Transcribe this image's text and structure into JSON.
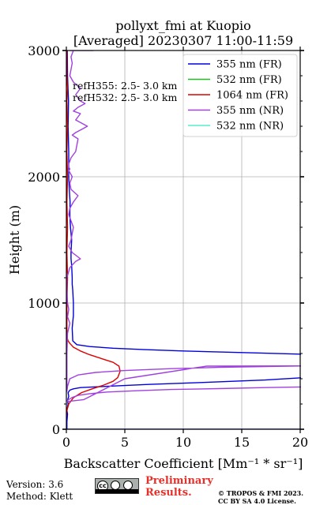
{
  "title_line1": "pollyxt_fmi at Kuopio",
  "title_line2": "[Averaged] 20230307 11:00-11:59",
  "footer": {
    "version": "Version: 3.6",
    "method": "Method: Klett",
    "prelim_line1": "Preliminary",
    "prelim_line2": "Results.",
    "copyright_line1": "© TROPOS & FMI 2023.",
    "copyright_line2": "CC BY SA 4.0 License.",
    "license_icon": "cc-by-sa-badge"
  },
  "chart_data": {
    "type": "line",
    "xlabel": "Backscatter Coefficient [Mm⁻¹ * sr⁻¹]",
    "ylabel": "Height (m)",
    "xlim": [
      0,
      20
    ],
    "ylim": [
      0,
      3000
    ],
    "xticks": [
      0,
      5,
      10,
      15,
      20
    ],
    "yticks": [
      0,
      1000,
      2000,
      3000
    ],
    "grid": true,
    "legend_position": "top-right",
    "annotations": [
      "refH355:  2.5- 3.0 km",
      "refH532:  2.5- 3.0 km"
    ],
    "series": [
      {
        "name": "355 nm (FR)",
        "color": "#0000dd",
        "x": [
          20.5,
          20.0,
          17.0,
          12.0,
          7.0,
          3.8,
          1.8,
          0.6,
          0.05,
          0.05,
          0.1,
          0.05,
          0.15,
          0.1,
          0.2,
          0.15,
          0.3,
          0.6,
          1.2,
          3.5,
          7.0,
          11.5,
          17.0,
          20.5,
          20.5,
          20.0,
          16.0,
          10.0,
          6.5,
          4.0,
          2.0,
          0.9,
          0.55,
          0.5,
          0.55,
          0.6,
          0.6,
          0.55,
          0.5,
          0.5,
          0.45,
          0.4,
          0.4,
          0.45,
          0.35,
          0.3,
          0.32,
          0.25,
          0.2,
          0.2,
          0.15,
          0.18,
          0.1,
          0.08
        ],
        "y": [
          0,
          0,
          0,
          0,
          0,
          0,
          0,
          0,
          0,
          60,
          120,
          150,
          200,
          230,
          260,
          290,
          310,
          320,
          330,
          340,
          355,
          370,
          390,
          410,
          590,
          595,
          605,
          620,
          632,
          642,
          655,
          670,
          700,
          800,
          850,
          900,
          1000,
          1100,
          1150,
          1200,
          1300,
          1350,
          1400,
          1500,
          1600,
          1700,
          1800,
          1900,
          2000,
          2200,
          2400,
          2600,
          2800,
          3000
        ]
      },
      {
        "name": "532 nm (FR)",
        "color": "#22bb22",
        "x": [],
        "y": []
      },
      {
        "name": "1064 nm (FR)",
        "color": "#dd0000",
        "x": [
          0.0,
          0.05,
          0.2,
          0.6,
          1.3,
          2.2,
          3.2,
          4.0,
          4.4,
          4.6,
          4.5,
          4.0,
          3.0,
          2.0,
          1.2,
          0.6,
          0.3,
          0.15,
          0.05,
          0.05,
          0.05,
          0.1,
          0.05,
          0.1,
          0.05,
          0.1,
          0.05,
          0.1,
          0.05,
          0.1,
          0.05,
          0.05
        ],
        "y": [
          100,
          150,
          200,
          250,
          290,
          320,
          350,
          380,
          410,
          460,
          500,
          530,
          560,
          590,
          620,
          650,
          680,
          700,
          730,
          800,
          1000,
          1200,
          1400,
          1600,
          1800,
          2000,
          2200,
          2400,
          2600,
          2700,
          2800,
          3000
        ]
      },
      {
        "name": "355 nm (NR)",
        "color": "#a040e0",
        "x": [
          20.5,
          20.0,
          17.0,
          13.0,
          9.0,
          6.0,
          3.5,
          2.0,
          1.0,
          0.5,
          0.1,
          0.1,
          1.5,
          5.0,
          12.0,
          20.5,
          20.5,
          18.0,
          13.0,
          9.0,
          5.0,
          2.5,
          1.0,
          0.3,
          0.1,
          0.05,
          0.05,
          0.1,
          0.3,
          0.1,
          0.2,
          0.1,
          0.05,
          0.05,
          0.3,
          0.8,
          1.2,
          0.5,
          0.2,
          0.4,
          0.6,
          0.2,
          0.3,
          0.6,
          1.0,
          0.4,
          0.3,
          0.5,
          0.2,
          0.3,
          0.2,
          0.2,
          0.4,
          0.8,
          1.0,
          0.5,
          0.8,
          1.4,
          1.8,
          0.8,
          1.2,
          0.6,
          1.0,
          1.6,
          1.2,
          0.8,
          1.2,
          0.6,
          0.3,
          0.5,
          0.4,
          0.6,
          0.4,
          0.3,
          0.8,
          1.8,
          0.5,
          1.1,
          0.6,
          1.0,
          0.8,
          1.4,
          0.9,
          1.6,
          1.3,
          2.3,
          1.0,
          0.5,
          0.8
        ],
        "y": [
          335,
          335,
          330,
          322,
          315,
          305,
          295,
          282,
          268,
          252,
          230,
          220,
          235,
          400,
          500,
          502,
          502,
          498,
          490,
          480,
          465,
          450,
          430,
          400,
          340,
          300,
          600,
          760,
          840,
          890,
          950,
          1000,
          1100,
          1200,
          1280,
          1330,
          1350,
          1400,
          1450,
          1500,
          1600,
          1700,
          1750,
          1800,
          1850,
          1900,
          1950,
          2000,
          2050,
          2060,
          2080,
          2100,
          2150,
          2200,
          2300,
          2330,
          2350,
          2380,
          2400,
          2450,
          2500,
          2520,
          2550,
          2580,
          2600,
          2650,
          2700,
          2750,
          2800,
          2900,
          2950,
          3000,
          3000,
          3000,
          3000,
          3000,
          3000,
          3000,
          3000,
          3000,
          3000,
          3000,
          3000,
          3000,
          3000,
          3000,
          3000,
          3000,
          3000
        ]
      },
      {
        "name": "532 nm (NR)",
        "color": "#55eecc",
        "x": [],
        "y": []
      }
    ]
  }
}
